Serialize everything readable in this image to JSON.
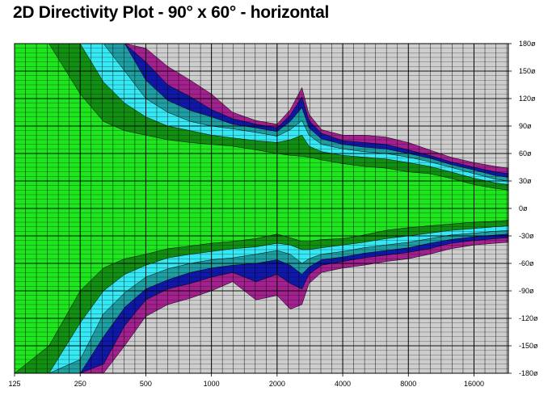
{
  "title": "2D Directivity Plot - 90° x 60° - horizontal",
  "chart_data": {
    "type": "heatmap",
    "title": "2D Directivity Plot - 90° x 60° - horizontal",
    "xlabel": "",
    "ylabel": "",
    "x_scale": "log",
    "x_range": [
      125,
      23000
    ],
    "y_range": [
      -180,
      180
    ],
    "grid": true,
    "x_ticks": [
      125,
      250,
      500,
      1000,
      2000,
      4000,
      8000,
      16000
    ],
    "x_tick_labels": [
      "125",
      "250",
      "500",
      "1000",
      "2000",
      "4000",
      "8000",
      "16000"
    ],
    "y_ticks": [
      180,
      150,
      120,
      90,
      60,
      30,
      0,
      -30,
      -60,
      -90,
      -120,
      -150,
      -180
    ],
    "y_tick_labels": [
      "180ø",
      "150ø",
      "120ø",
      "90ø",
      "60ø",
      "30ø",
      "0ø",
      "-30ø",
      "-60ø",
      "-90ø",
      "-120ø",
      "-150ø",
      "-180ø"
    ],
    "contour_levels": [
      {
        "level": 1,
        "color": "#1ee51e"
      },
      {
        "level": 2,
        "color": "#128f12"
      },
      {
        "level": 3,
        "color": "#35e8f3"
      },
      {
        "level": 4,
        "color": "#1f9ea2"
      },
      {
        "level": 5,
        "color": "#1018a8"
      },
      {
        "level": 6,
        "color": "#a3208f"
      },
      {
        "level": 7,
        "color": "#cdcdcd"
      }
    ],
    "contour_boundaries_upper": {
      "freq": [
        125,
        180,
        250,
        320,
        400,
        500,
        630,
        800,
        1000,
        1250,
        1600,
        2000,
        2300,
        2600,
        2800,
        3200,
        4000,
        5000,
        6300,
        8000,
        10000,
        12500,
        16000,
        20000,
        23000
      ],
      "angles": [
        [
          180,
          180,
          125,
          95,
          85,
          80,
          75,
          72,
          70,
          68,
          64,
          60,
          58,
          57,
          56,
          53,
          49,
          46,
          44,
          40,
          38,
          33,
          26,
          22,
          20
        ],
        [
          180,
          180,
          180,
          138,
          115,
          100,
          90,
          85,
          80,
          77,
          74,
          72,
          75,
          80,
          68,
          62,
          58,
          56,
          54,
          50,
          46,
          40,
          33,
          28,
          26
        ],
        [
          180,
          180,
          180,
          180,
          150,
          120,
          105,
          95,
          90,
          87,
          83,
          79,
          86,
          96,
          80,
          70,
          65,
          62,
          60,
          56,
          51,
          45,
          38,
          32,
          30
        ],
        [
          180,
          180,
          180,
          180,
          180,
          140,
          118,
          107,
          100,
          92,
          88,
          84,
          95,
          110,
          88,
          76,
          70,
          67,
          65,
          60,
          55,
          48,
          42,
          36,
          34
        ],
        [
          180,
          180,
          180,
          180,
          180,
          160,
          135,
          122,
          108,
          98,
          92,
          88,
          102,
          122,
          96,
          82,
          74,
          72,
          70,
          64,
          58,
          51,
          45,
          40,
          38
        ],
        [
          180,
          180,
          180,
          180,
          180,
          175,
          155,
          140,
          125,
          105,
          96,
          92,
          108,
          132,
          103,
          86,
          80,
          80,
          78,
          72,
          64,
          56,
          50,
          46,
          44
        ]
      ]
    },
    "contour_boundaries_lower": {
      "freq": [
        125,
        180,
        250,
        320,
        400,
        500,
        630,
        800,
        1000,
        1250,
        1600,
        2000,
        2300,
        2600,
        2800,
        3200,
        4000,
        5000,
        6300,
        8000,
        10000,
        12500,
        16000,
        20000,
        23000
      ],
      "angles": [
        [
          -180,
          -150,
          -90,
          -65,
          -55,
          -50,
          -44,
          -41,
          -38,
          -36,
          -33,
          -28,
          -32,
          -36,
          -36,
          -34,
          -33,
          -29,
          -24,
          -21,
          -19,
          -17,
          -15,
          -14,
          -13
        ],
        [
          -180,
          -180,
          -125,
          -90,
          -72,
          -62,
          -54,
          -50,
          -47,
          -44,
          -42,
          -38,
          -40,
          -45,
          -45,
          -43,
          -40,
          -37,
          -33,
          -30,
          -27,
          -24,
          -22,
          -20,
          -19
        ],
        [
          -180,
          -180,
          -165,
          -115,
          -92,
          -75,
          -66,
          -60,
          -56,
          -54,
          -50,
          -46,
          -50,
          -60,
          -55,
          -50,
          -47,
          -43,
          -40,
          -37,
          -33,
          -29,
          -27,
          -25,
          -24
        ],
        [
          -180,
          -180,
          -180,
          -140,
          -108,
          -88,
          -78,
          -70,
          -65,
          -62,
          -60,
          -56,
          -62,
          -72,
          -64,
          -56,
          -53,
          -49,
          -46,
          -43,
          -38,
          -34,
          -31,
          -29,
          -28
        ],
        [
          -180,
          -180,
          -180,
          -170,
          -128,
          -100,
          -88,
          -82,
          -75,
          -70,
          -80,
          -72,
          -82,
          -88,
          -72,
          -62,
          -58,
          -54,
          -51,
          -48,
          -44,
          -38,
          -35,
          -33,
          -32
        ],
        [
          -180,
          -180,
          -180,
          -180,
          -150,
          -118,
          -105,
          -98,
          -90,
          -80,
          -100,
          -95,
          -110,
          -105,
          -82,
          -70,
          -65,
          -62,
          -58,
          -55,
          -50,
          -44,
          -40,
          -38,
          -37
        ]
      ]
    }
  }
}
